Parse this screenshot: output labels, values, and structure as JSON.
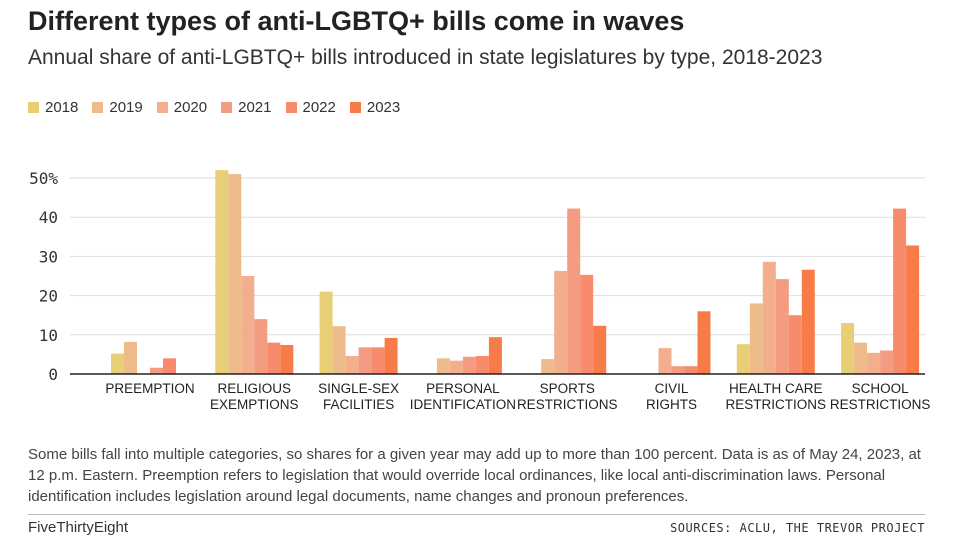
{
  "chart_data": {
    "type": "bar",
    "title": "Different types of anti-LGBTQ+ bills come in waves",
    "subtitle": "Annual share of anti-LGBTQ+ bills introduced in state legislatures by type, 2018-2023",
    "xlabel": "",
    "ylabel": "",
    "ylim": [
      0,
      50
    ],
    "yticks": [
      0,
      10,
      20,
      30,
      40,
      50
    ],
    "ytick_labels": [
      "0",
      "10",
      "20",
      "30",
      "40",
      "50%"
    ],
    "grid": true,
    "legend_position": "top-left",
    "categories": [
      [
        "PREEMPTION"
      ],
      [
        "RELIGIOUS",
        "EXEMPTIONS"
      ],
      [
        "SINGLE-SEX",
        "FACILITIES"
      ],
      [
        "PERSONAL",
        "IDENTIFICATION"
      ],
      [
        "SPORTS",
        "RESTRICTIONS"
      ],
      [
        "CIVIL",
        "RIGHTS"
      ],
      [
        "HEALTH CARE",
        "RESTRICTIONS"
      ],
      [
        "SCHOOL",
        "RESTRICTIONS"
      ]
    ],
    "series": [
      {
        "name": "2018",
        "color": "#e8cf76",
        "values": [
          5.2,
          52,
          21,
          0,
          0,
          0,
          7.6,
          13
        ]
      },
      {
        "name": "2019",
        "color": "#edbc8a",
        "values": [
          8.2,
          51,
          12.2,
          4,
          3.8,
          0,
          18,
          8
        ]
      },
      {
        "name": "2020",
        "color": "#f2ae8d",
        "values": [
          0,
          25,
          4.6,
          3.4,
          26.3,
          6.6,
          28.6,
          5.4
        ]
      },
      {
        "name": "2021",
        "color": "#f49c82",
        "values": [
          1.6,
          14,
          6.8,
          4.4,
          42.2,
          2,
          24.2,
          6
        ]
      },
      {
        "name": "2022",
        "color": "#f78b6c",
        "values": [
          4,
          8,
          6.8,
          4.6,
          25.3,
          2,
          15,
          42.2
        ]
      },
      {
        "name": "2023",
        "color": "#f77c48",
        "values": [
          0,
          7.4,
          9.2,
          9.4,
          12.3,
          16,
          26.6,
          32.8
        ]
      }
    ]
  },
  "note": "Some bills fall into multiple categories, so shares for a given year may add up to more than 100 percent. Data is as of May 24, 2023, at 12 p.m. Eastern. Preemption refers to legislation that would override local ordinances, like local anti-discrimination laws. Personal identification includes legislation around legal documents, name changes and pronoun preferences.",
  "footer": {
    "brand": "FiveThirtyEight",
    "sources": "SOURCES: ACLU, THE TREVOR PROJECT"
  }
}
